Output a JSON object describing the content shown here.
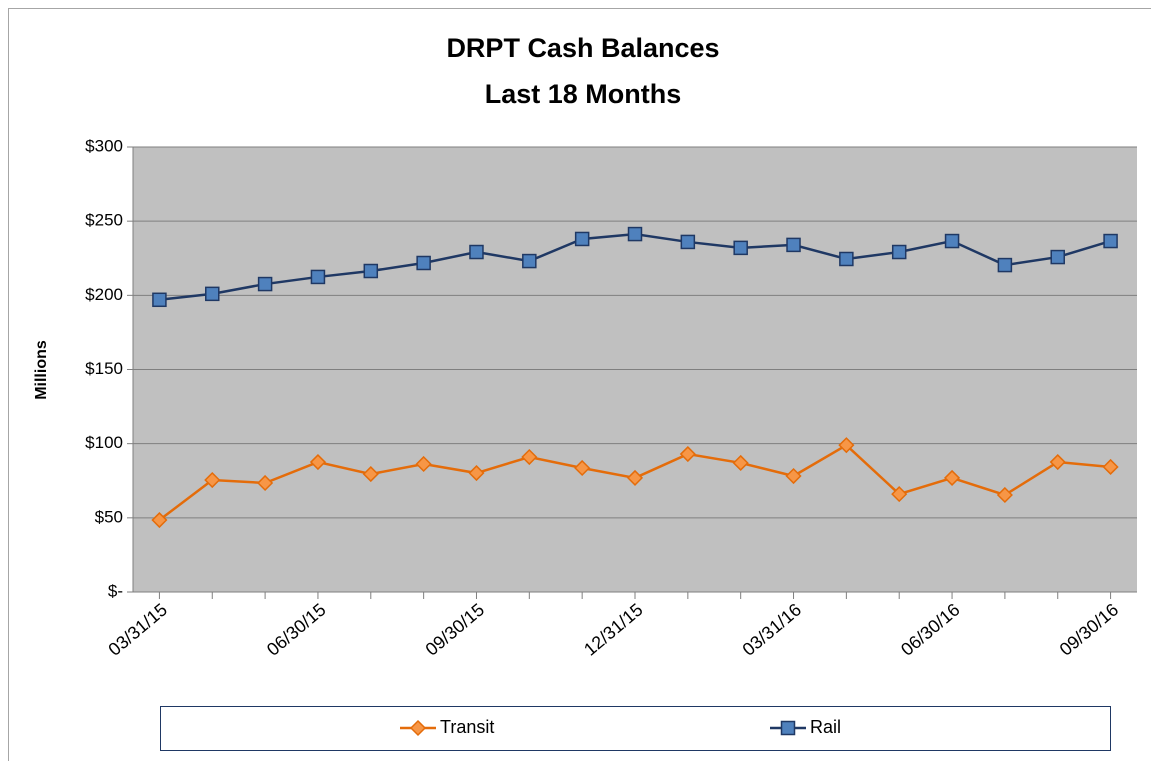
{
  "chart_data": {
    "type": "line",
    "title": "DRPT Cash Balances",
    "subtitle": "Last 18 Months",
    "y_label": "Millions",
    "categories": [
      "03/31/15",
      null,
      null,
      "06/30/15",
      null,
      null,
      "09/30/15",
      null,
      null,
      "12/31/15",
      null,
      null,
      "03/31/16",
      null,
      null,
      "06/30/16",
      null,
      null,
      "09/30/16"
    ],
    "series": [
      {
        "name": "Transit",
        "color": "#e46c0a",
        "marker": "diamond",
        "marker_color": "#f79646",
        "values": [
          48.5,
          75.5,
          73.5,
          87.6,
          79.5,
          86.3,
          80.2,
          91,
          83.6,
          76.9,
          93,
          87,
          78.2,
          99,
          66,
          76.9,
          65.4,
          87.6,
          84.3
        ]
      },
      {
        "name": "Rail",
        "color": "#1f3864",
        "marker": "square",
        "marker_color": "#4f81bd",
        "values": [
          197,
          201,
          207.6,
          212.4,
          216.4,
          221.8,
          229.2,
          223.1,
          238,
          241.3,
          236,
          232,
          234,
          224.5,
          229.2,
          236.6,
          220.4,
          225.8,
          236.6
        ]
      }
    ],
    "ylim": [
      0,
      300
    ],
    "yticks": [
      {
        "value": 0,
        "label": "$-"
      },
      {
        "value": 50,
        "label": "$50"
      },
      {
        "value": 100,
        "label": "$100"
      },
      {
        "value": 150,
        "label": "$150"
      },
      {
        "value": 200,
        "label": "$200"
      },
      {
        "value": 250,
        "label": "$250"
      },
      {
        "value": 300,
        "label": "$300"
      }
    ],
    "grid": true,
    "legend": "bottom"
  }
}
